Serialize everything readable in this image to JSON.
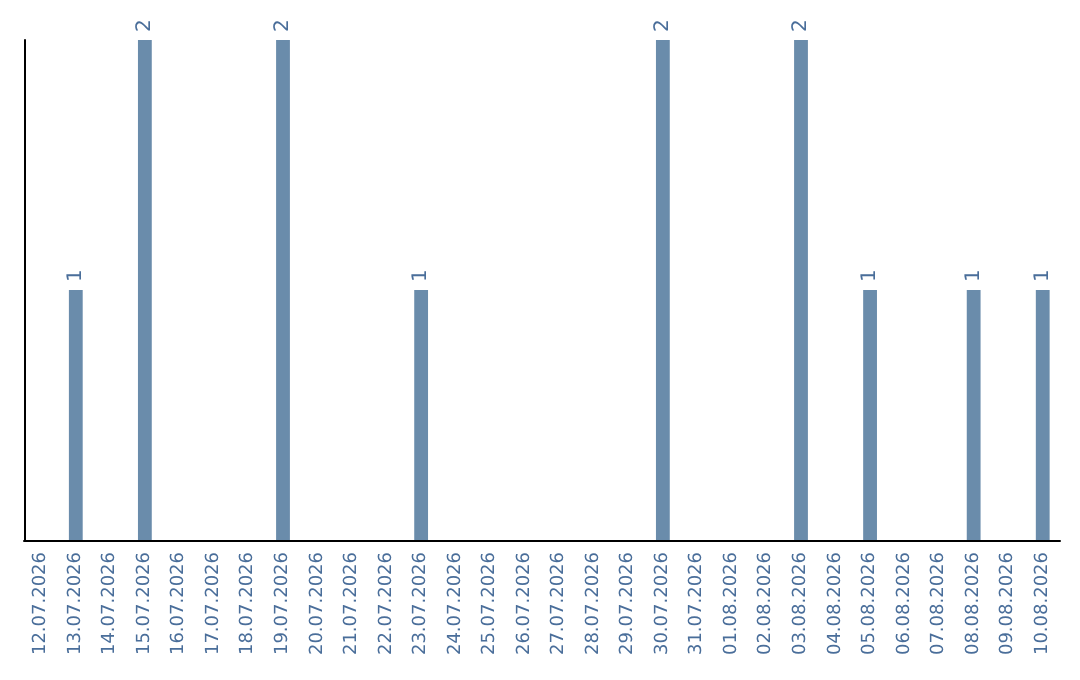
{
  "chart_data": {
    "type": "bar",
    "categories": [
      "12.07.2026",
      "13.07.2026",
      "14.07.2026",
      "15.07.2026",
      "16.07.2026",
      "17.07.2026",
      "18.07.2026",
      "19.07.2026",
      "20.07.2026",
      "21.07.2026",
      "22.07.2026",
      "23.07.2026",
      "24.07.2026",
      "25.07.2026",
      "26.07.2026",
      "27.07.2026",
      "28.07.2026",
      "29.07.2026",
      "30.07.2026",
      "31.07.2026",
      "01.08.2026",
      "02.08.2026",
      "03.08.2026",
      "04.08.2026",
      "05.08.2026",
      "06.08.2026",
      "07.08.2026",
      "08.08.2026",
      "09.08.2026",
      "10.08.2026"
    ],
    "values": [
      null,
      1,
      null,
      2,
      null,
      null,
      null,
      2,
      null,
      null,
      null,
      1,
      null,
      null,
      null,
      null,
      null,
      null,
      2,
      null,
      null,
      null,
      2,
      null,
      1,
      null,
      null,
      1,
      null,
      1
    ],
    "color": "#6a8cab",
    "data_labels": true
  }
}
